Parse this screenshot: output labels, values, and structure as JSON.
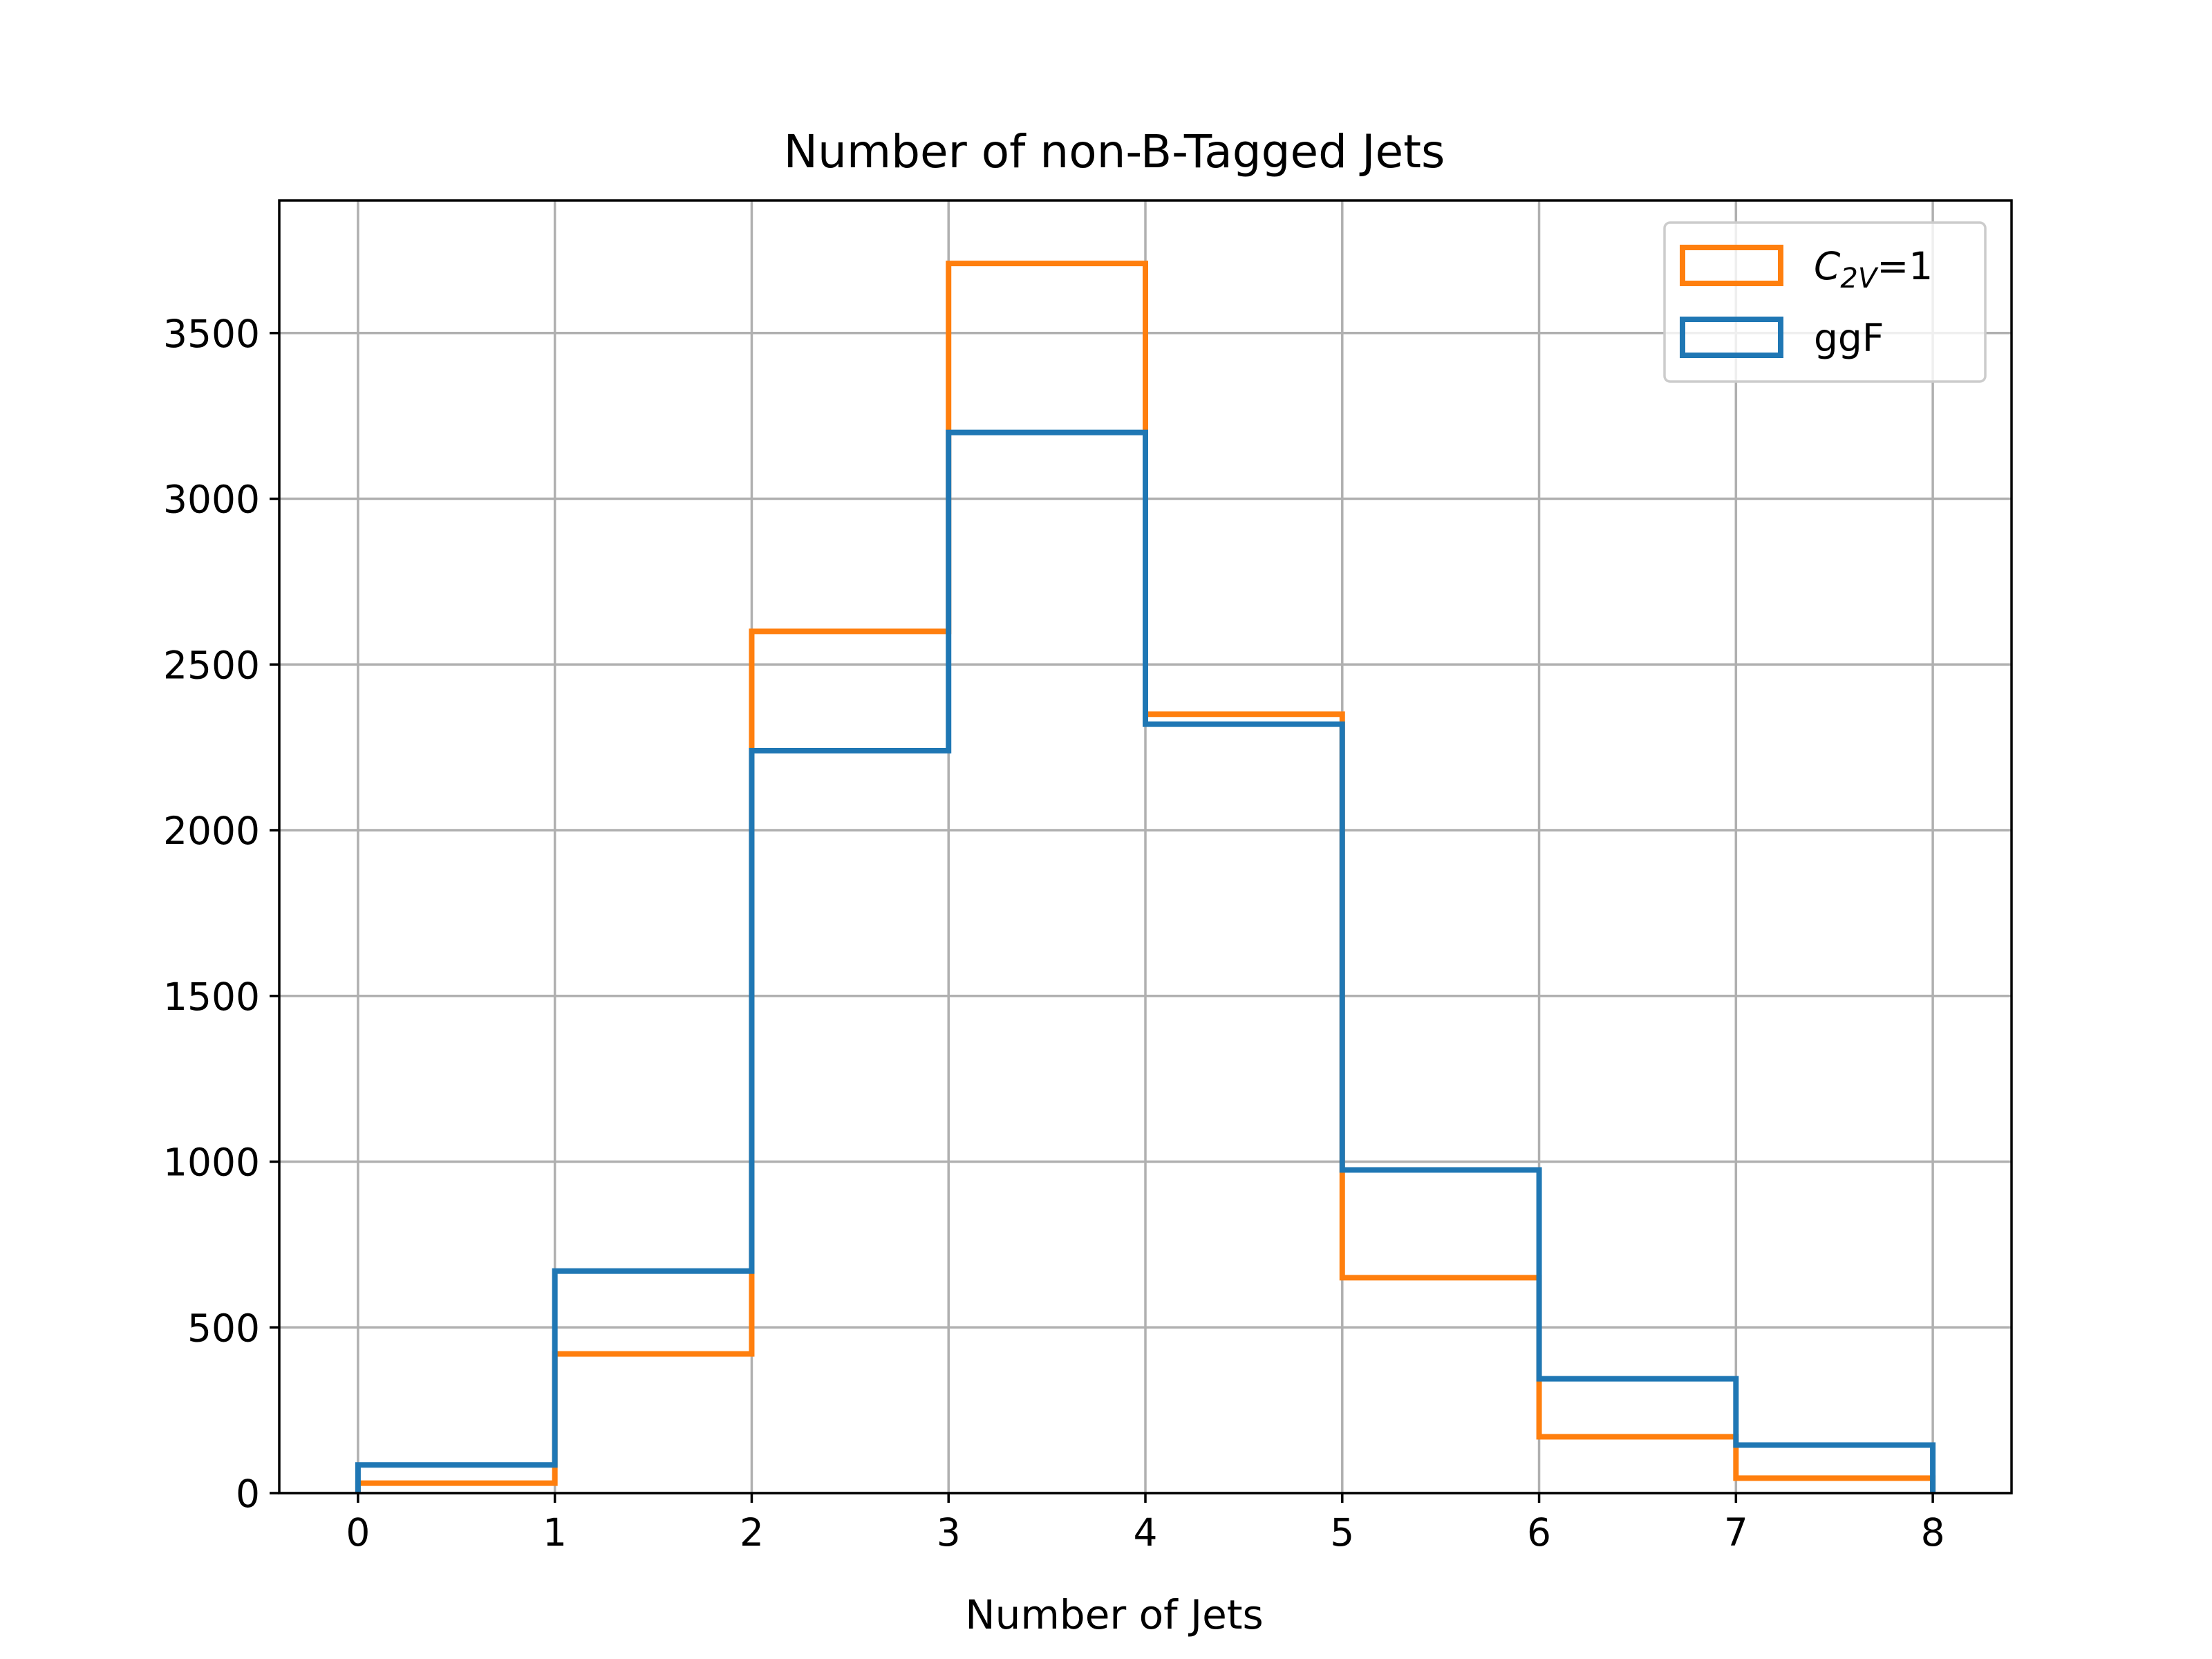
{
  "chart_data": {
    "type": "histogram-step",
    "title": "Number of non-B-Tagged Jets",
    "xlabel": "Number of Jets",
    "ylabel": "",
    "xlim": [
      -0.4,
      8.4
    ],
    "ylim": [
      0,
      3900
    ],
    "xticks": [
      0,
      1,
      2,
      3,
      4,
      5,
      6,
      7,
      8
    ],
    "yticks": [
      0,
      500,
      1000,
      1500,
      2000,
      2500,
      3000,
      3500
    ],
    "grid": true,
    "legend_position": "top-right",
    "bin_edges": [
      0,
      1,
      2,
      3,
      4,
      5,
      6,
      7,
      8
    ],
    "series": [
      {
        "name": "C",
        "name_sub": "2V",
        "name_suffix": "=1",
        "color": "#ff7f0e",
        "values": [
          30,
          420,
          2600,
          3710,
          2350,
          650,
          170,
          45
        ]
      },
      {
        "name": "ggF",
        "color": "#1f77b4",
        "values": [
          85,
          670,
          2240,
          3200,
          2320,
          975,
          345,
          145
        ]
      }
    ]
  }
}
